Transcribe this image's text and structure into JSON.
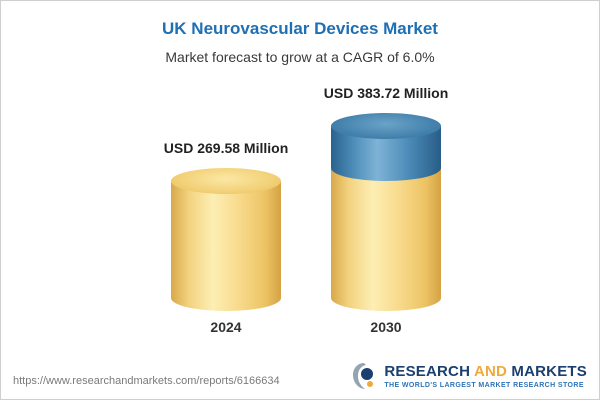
{
  "header": {
    "title": "UK Neurovascular Devices Market",
    "subtitle": "Market forecast to grow at a CAGR of 6.0%"
  },
  "chart_data": {
    "type": "bar",
    "categories": [
      "2024",
      "2030"
    ],
    "values": [
      269.58,
      383.72
    ],
    "value_labels": [
      "USD 269.58 Million",
      "USD 383.72 Million"
    ],
    "title": "UK Neurovascular Devices Market",
    "subtitle": "Market forecast to grow at a CAGR of 6.0%",
    "unit": "USD Million",
    "cagr": "6.0%",
    "ylim": [
      0,
      400
    ],
    "legend": "none",
    "grid": false,
    "colors": {
      "bar_base": "#f6d77e",
      "bar_growth_segment": "#4a87b2",
      "title": "#1e6fb4"
    },
    "notes": "2030 bar shows base (yellow) equal to 2024 value plus growth segment (blue) on top"
  },
  "footer": {
    "url": "https://www.researchandmarkets.com/reports/6166634",
    "logo": {
      "word1": "RESEARCH",
      "word2": "AND",
      "word3": "MARKETS",
      "tagline": "THE WORLD'S LARGEST MARKET RESEARCH STORE"
    }
  }
}
